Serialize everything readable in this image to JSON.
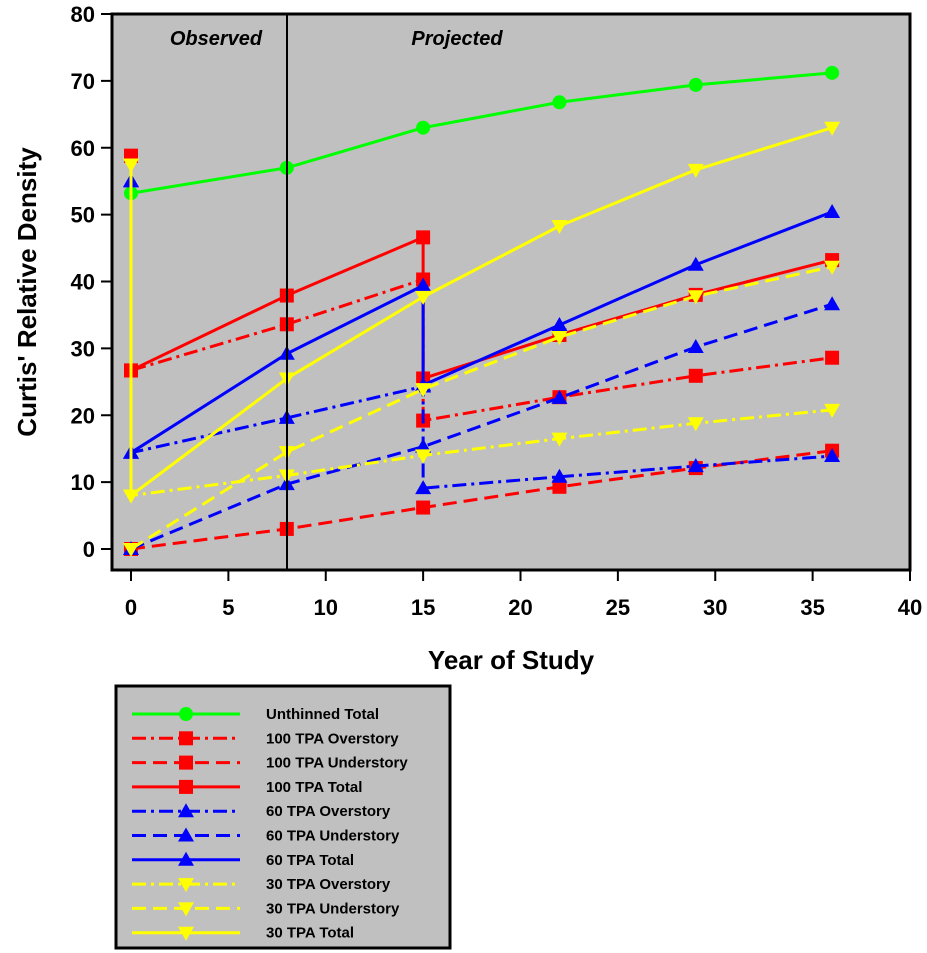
{
  "chart_data": {
    "type": "line",
    "title": "",
    "xlabel": "Year of Study",
    "ylabel": "Curtis' Relative Density",
    "xlim": [
      0,
      40
    ],
    "ylim": [
      0,
      80
    ],
    "xticks": [
      0,
      5,
      10,
      15,
      20,
      25,
      30,
      35,
      40
    ],
    "yticks": [
      0,
      10,
      20,
      30,
      40,
      50,
      60,
      70,
      80
    ],
    "grid": false,
    "plot_background": "#c0c0c0",
    "legend_placement": "bottom-left, below plot",
    "annotations": [
      {
        "text": "Observed",
        "x": 5.5,
        "y": 76.5
      },
      {
        "text": "Projected",
        "x": 19.6,
        "y": 76.5
      }
    ],
    "divider_x": 8,
    "series": [
      {
        "name": "Unthinned Total",
        "color": "#00ff00",
        "dash": "solid",
        "marker": "circle",
        "x": [
          0,
          8,
          15,
          22,
          29,
          36
        ],
        "y": [
          53.2,
          57,
          63,
          66.8,
          69.4,
          71.2
        ]
      },
      {
        "name": "100 TPA Overstory",
        "color": "#ff0000",
        "dash": "dashdot",
        "marker": "square",
        "x": [
          0,
          0,
          8,
          15,
          15,
          22,
          29,
          36
        ],
        "y": [
          58.8,
          26.7,
          33.6,
          40.3,
          19.2,
          22.7,
          25.9,
          28.6
        ]
      },
      {
        "name": "100 TPA Understory",
        "color": "#ff0000",
        "dash": "dash",
        "marker": "square",
        "x": [
          0,
          8,
          15,
          22,
          29,
          36
        ],
        "y": [
          0,
          3,
          6.2,
          9.3,
          12.1,
          14.7
        ]
      },
      {
        "name": "100 TPA Total",
        "color": "#ff0000",
        "dash": "solid",
        "marker": "square",
        "x": [
          0,
          0,
          8,
          15,
          15,
          22,
          29,
          36
        ],
        "y": [
          58.8,
          26.7,
          37.9,
          46.6,
          25.5,
          32,
          38,
          43.2
        ]
      },
      {
        "name": "60 TPA Overstory",
        "color": "#0000ff",
        "dash": "dashdot",
        "marker": "triangle-up",
        "x": [
          0,
          0,
          8,
          15,
          15,
          22,
          29,
          36
        ],
        "y": [
          55,
          14.4,
          19.6,
          24.3,
          9.1,
          10.8,
          12.4,
          13.9
        ]
      },
      {
        "name": "60 TPA Understory",
        "color": "#0000ff",
        "dash": "dash",
        "marker": "triangle-up",
        "x": [
          0,
          8,
          15,
          22,
          29,
          36
        ],
        "y": [
          0,
          9.7,
          15.3,
          22.6,
          30.2,
          36.6
        ]
      },
      {
        "name": "60 TPA Total",
        "color": "#0000ff",
        "dash": "solid",
        "marker": "triangle-up",
        "x": [
          0,
          0,
          8,
          15,
          15,
          22,
          29,
          36
        ],
        "y": [
          55,
          14.4,
          29.2,
          39.4,
          24.5,
          33.5,
          42.5,
          50.4
        ]
      },
      {
        "name": "30 TPA Overstory",
        "color": "#ffff00",
        "dash": "dashdot",
        "marker": "triangle-down",
        "x": [
          0,
          0,
          8,
          15,
          22,
          29,
          36
        ],
        "y": [
          57.5,
          8,
          11,
          14,
          16.5,
          18.8,
          20.8
        ]
      },
      {
        "name": "30 TPA Understory",
        "color": "#ffff00",
        "dash": "dash",
        "marker": "triangle-down",
        "x": [
          0,
          8,
          15,
          22,
          29,
          36
        ],
        "y": [
          0,
          14.5,
          23.9,
          31.7,
          37.8,
          42.2
        ]
      },
      {
        "name": "30 TPA Total",
        "color": "#ffff00",
        "dash": "solid",
        "marker": "triangle-down",
        "x": [
          0,
          0,
          8,
          15,
          22,
          29,
          36
        ],
        "y": [
          57.5,
          8,
          25.5,
          37.7,
          48.3,
          56.7,
          63
        ]
      }
    ]
  }
}
